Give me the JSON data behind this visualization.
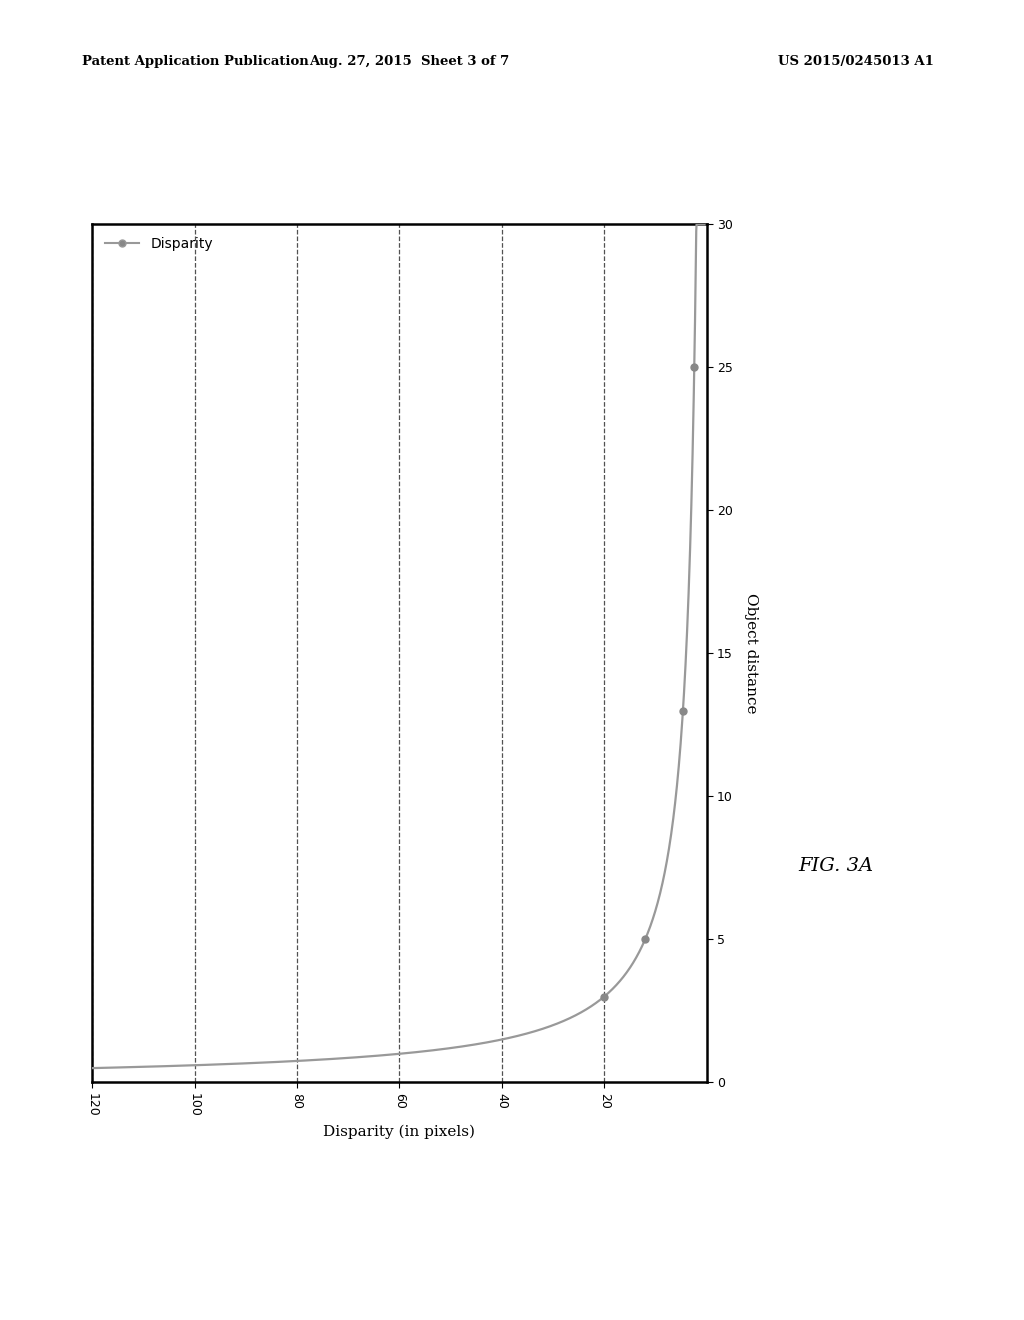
{
  "header_left": "Patent Application Publication",
  "header_mid": "Aug. 27, 2015  Sheet 3 of 7",
  "header_right": "US 2015/0245013 A1",
  "fig_label": "FIG. 3A",
  "xlabel_bottom": "Disparity (in pixels)",
  "ylabel_right": "Object distance",
  "x_ticks": [
    20,
    40,
    60,
    80,
    100,
    120
  ],
  "y_ticks": [
    0,
    5,
    10,
    15,
    20,
    25,
    30
  ],
  "xlim": [
    120,
    0
  ],
  "ylim": [
    0,
    30
  ],
  "legend_label": "Disparity",
  "line_color": "#999999",
  "marker_color": "#888888",
  "background_color": "#ffffff",
  "grid_color": "#333333",
  "k_constant": 60.0,
  "marker_distances": [
    3,
    5,
    13,
    25
  ]
}
